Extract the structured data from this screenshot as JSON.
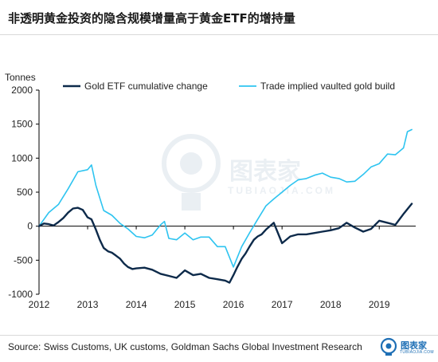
{
  "header": {
    "title": "非透明黄金投资的隐含规模增量高于黄金ETF的增持量"
  },
  "footer": {
    "source": "Source: Swiss Customs, UK customs, Goldman Sachs Global Investment Research",
    "logo_text": "图表家",
    "logo_sub": "TUBIAOJIA.COM"
  },
  "watermark": {
    "text": "图表家",
    "sub": "TUBIAOJIA.COM"
  },
  "colors": {
    "etf": "#0d2a4a",
    "vaulted": "#2ec4f0",
    "axis": "#000000"
  },
  "chart_data": {
    "type": "line",
    "ylabel": "Tonnes",
    "ylim": [
      -1000,
      2000
    ],
    "yticks": [
      2000,
      1500,
      1000,
      500,
      0,
      -500,
      -1000
    ],
    "xlim": [
      2012,
      2019.75
    ],
    "xticks": [
      "2012",
      "2013",
      "2014",
      "2015",
      "2016",
      "2017",
      "2018",
      "2019"
    ],
    "legend_position": "top",
    "series": [
      {
        "name": "Gold ETF cumulative change",
        "x": [
          2012.0,
          2012.1,
          2012.2,
          2012.3,
          2012.4,
          2012.5,
          2012.6,
          2012.7,
          2012.8,
          2012.9,
          2013.0,
          2013.08,
          2013.17,
          2013.25,
          2013.33,
          2013.42,
          2013.5,
          2013.58,
          2013.67,
          2013.75,
          2013.83,
          2013.92,
          2014.0,
          2014.17,
          2014.33,
          2014.5,
          2014.67,
          2014.83,
          2015.0,
          2015.17,
          2015.33,
          2015.5,
          2015.67,
          2015.83,
          2015.92,
          2016.0,
          2016.08,
          2016.17,
          2016.25,
          2016.33,
          2016.42,
          2016.5,
          2016.58,
          2016.67,
          2016.83,
          2017.0,
          2017.17,
          2017.33,
          2017.5,
          2017.67,
          2017.83,
          2018.0,
          2018.17,
          2018.33,
          2018.5,
          2018.67,
          2018.83,
          2019.0,
          2019.17,
          2019.33,
          2019.5,
          2019.58,
          2019.67
        ],
        "values": [
          0,
          40,
          30,
          10,
          60,
          120,
          200,
          260,
          270,
          240,
          130,
          100,
          -50,
          -200,
          -320,
          -370,
          -390,
          -430,
          -480,
          -550,
          -600,
          -630,
          -620,
          -610,
          -640,
          -700,
          -730,
          -760,
          -650,
          -720,
          -700,
          -760,
          -780,
          -800,
          -830,
          -720,
          -600,
          -480,
          -400,
          -300,
          -200,
          -150,
          -120,
          -50,
          50,
          -250,
          -150,
          -120,
          -120,
          -100,
          -80,
          -60,
          -30,
          50,
          -20,
          -80,
          -40,
          80,
          50,
          20,
          180,
          250,
          330
        ]
      },
      {
        "name": "Trade implied vaulted gold build",
        "x": [
          2012.0,
          2012.2,
          2012.4,
          2012.6,
          2012.8,
          2013.0,
          2013.08,
          2013.17,
          2013.33,
          2013.5,
          2013.67,
          2013.83,
          2014.0,
          2014.17,
          2014.33,
          2014.5,
          2014.58,
          2014.67,
          2014.83,
          2015.0,
          2015.17,
          2015.33,
          2015.5,
          2015.67,
          2015.83,
          2016.0,
          2016.17,
          2016.33,
          2016.5,
          2016.67,
          2016.83,
          2017.0,
          2017.17,
          2017.33,
          2017.5,
          2017.67,
          2017.83,
          2018.0,
          2018.17,
          2018.33,
          2018.5,
          2018.67,
          2018.83,
          2019.0,
          2019.17,
          2019.33,
          2019.5,
          2019.58,
          2019.67
        ],
        "values": [
          0,
          200,
          320,
          550,
          800,
          830,
          900,
          600,
          230,
          160,
          40,
          -40,
          -150,
          -170,
          -130,
          20,
          70,
          -180,
          -200,
          -100,
          -200,
          -160,
          -160,
          -300,
          -300,
          -600,
          -300,
          -100,
          100,
          300,
          400,
          500,
          600,
          680,
          700,
          750,
          780,
          720,
          700,
          650,
          660,
          760,
          870,
          920,
          1060,
          1050,
          1150,
          1390,
          1420
        ]
      }
    ]
  }
}
